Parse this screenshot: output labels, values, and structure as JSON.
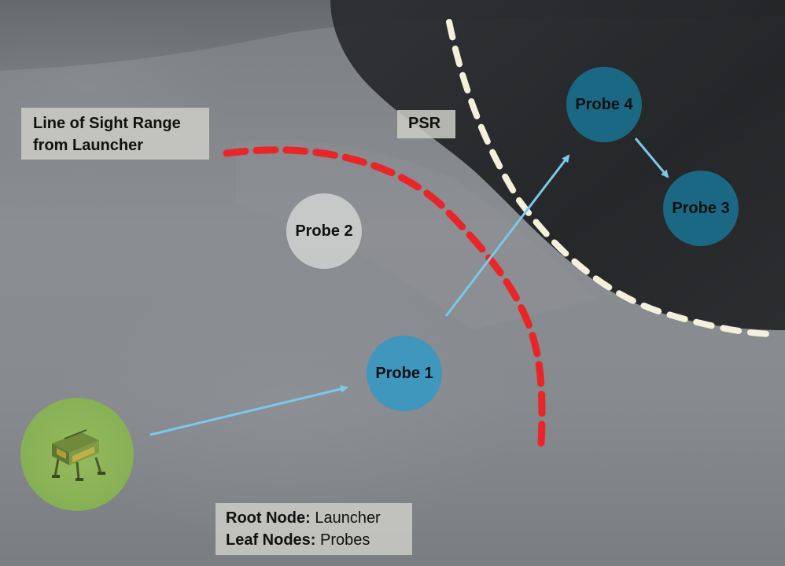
{
  "labels": {
    "los_line1": "Line of Sight Range",
    "los_line2": "from Launcher",
    "psr": "PSR"
  },
  "legend": {
    "root_key": "Root Node:",
    "root_value": " Launcher",
    "leaf_key": "Leaf Nodes:",
    "leaf_value": " Probes"
  },
  "nodes": {
    "probe_1": "Probe 1",
    "probe_2": "Probe 2",
    "probe_3": "Probe 3",
    "probe_4": "Probe 4"
  },
  "colors": {
    "line_of_sight": "#e8262a",
    "psr_boundary": "#f4f0dc",
    "arrow": "#7cc8ea",
    "probe_visible": "#3498c4",
    "probe_blocked": "#cdcece",
    "probe_in_psr": "#1a6e8c",
    "launcher": "#96be5a"
  },
  "icons": {
    "launcher": "lander-icon"
  }
}
